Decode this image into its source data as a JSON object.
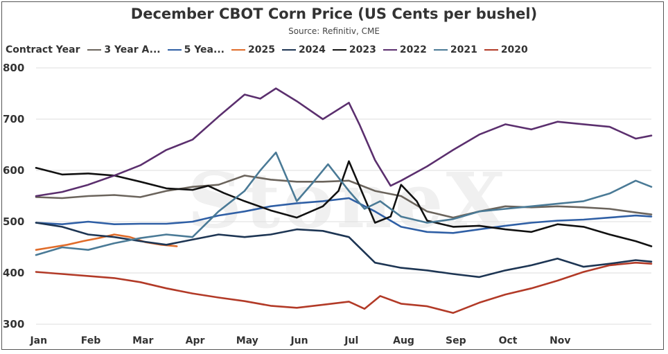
{
  "chart_data": {
    "type": "line",
    "title": "December CBOT Corn Price (US Cents per bushel)",
    "subtitle": "Source: Refinitiv, CME",
    "legend_title": "Contract Year",
    "legend_placement": "top",
    "watermark": "StoneX",
    "ylim": [
      300,
      800
    ],
    "yticks": [
      300,
      400,
      500,
      600,
      700,
      800
    ],
    "xlim": [
      0,
      11.8
    ],
    "months": [
      "Jan",
      "Feb",
      "Mar",
      "Apr",
      "May",
      "Jun",
      "Jul",
      "Aug",
      "Sep",
      "Oct",
      "Nov"
    ],
    "grid": "horizontal",
    "series": [
      {
        "name": "3 Year A...",
        "color": "#6b645c",
        "x": [
          0,
          0.5,
          1,
          1.5,
          2,
          2.5,
          3,
          3.5,
          4,
          4.5,
          5,
          5.5,
          6,
          6.5,
          7,
          7.5,
          8,
          8.5,
          9,
          9.5,
          10,
          10.5,
          11,
          11.5,
          11.8
        ],
        "y": [
          548,
          546,
          550,
          552,
          548,
          560,
          568,
          572,
          590,
          582,
          578,
          578,
          580,
          560,
          550,
          520,
          508,
          520,
          530,
          528,
          530,
          528,
          525,
          518,
          514
        ]
      },
      {
        "name": "5 Yea...",
        "color": "#2f5fa5",
        "x": [
          0,
          0.5,
          1,
          1.5,
          2,
          2.5,
          3,
          3.5,
          4,
          4.5,
          5,
          5.5,
          6,
          6.5,
          7,
          7.5,
          8,
          8.5,
          9,
          9.5,
          10,
          10.5,
          11,
          11.5,
          11.8
        ],
        "y": [
          498,
          495,
          500,
          495,
          496,
          496,
          500,
          512,
          520,
          530,
          536,
          540,
          546,
          520,
          490,
          480,
          478,
          485,
          492,
          498,
          502,
          504,
          508,
          512,
          510
        ]
      },
      {
        "name": "2025",
        "color": "#e06c2a",
        "x": [
          0,
          0.3,
          0.6,
          0.9,
          1.2,
          1.5,
          1.8,
          2.1,
          2.4,
          2.7
        ],
        "y": [
          445,
          450,
          455,
          462,
          468,
          475,
          470,
          460,
          455,
          452
        ]
      },
      {
        "name": "2024",
        "color": "#1d3553",
        "x": [
          0,
          0.5,
          1,
          1.5,
          2,
          2.5,
          3,
          3.5,
          4,
          4.5,
          5,
          5.5,
          6,
          6.5,
          7,
          7.5,
          8,
          8.5,
          9,
          9.5,
          10,
          10.5,
          11,
          11.5,
          11.8
        ],
        "y": [
          498,
          490,
          475,
          470,
          462,
          455,
          465,
          475,
          470,
          475,
          485,
          482,
          470,
          420,
          410,
          405,
          398,
          392,
          405,
          415,
          428,
          412,
          418,
          425,
          422
        ]
      },
      {
        "name": "2023",
        "color": "#111111",
        "x": [
          0,
          0.5,
          1,
          1.5,
          2,
          2.5,
          3,
          3.3,
          3.6,
          4,
          4.5,
          5,
          5.5,
          5.8,
          6,
          6.2,
          6.5,
          6.8,
          7,
          7.3,
          7.5,
          8,
          8.5,
          9,
          9.5,
          10,
          10.5,
          11,
          11.5,
          11.8
        ],
        "y": [
          605,
          592,
          594,
          590,
          578,
          565,
          562,
          570,
          556,
          540,
          522,
          508,
          530,
          560,
          618,
          570,
          498,
          510,
          572,
          540,
          502,
          490,
          492,
          485,
          480,
          495,
          490,
          475,
          462,
          452
        ]
      },
      {
        "name": "2022",
        "color": "#5b2f6e",
        "x": [
          0,
          0.5,
          1,
          1.5,
          2,
          2.5,
          3,
          3.5,
          4,
          4.3,
          4.6,
          5,
          5.5,
          6,
          6.2,
          6.5,
          6.8,
          7,
          7.5,
          8,
          8.5,
          9,
          9.5,
          10,
          10.5,
          11,
          11.5,
          11.8
        ],
        "y": [
          550,
          558,
          572,
          590,
          610,
          640,
          660,
          705,
          748,
          740,
          760,
          735,
          700,
          732,
          690,
          620,
          570,
          580,
          608,
          640,
          670,
          690,
          680,
          695,
          690,
          685,
          662,
          668
        ]
      },
      {
        "name": "2021",
        "color": "#4a7a96",
        "x": [
          0,
          0.5,
          1,
          1.5,
          2,
          2.5,
          3,
          3.5,
          4,
          4.3,
          4.6,
          5,
          5.3,
          5.6,
          6,
          6.3,
          6.6,
          7,
          7.5,
          8,
          8.5,
          9,
          9.5,
          10,
          10.5,
          11,
          11.5,
          11.8
        ],
        "y": [
          435,
          450,
          445,
          458,
          468,
          475,
          470,
          520,
          560,
          600,
          635,
          540,
          575,
          612,
          560,
          525,
          540,
          510,
          498,
          505,
          520,
          525,
          530,
          535,
          540,
          555,
          580,
          568
        ]
      },
      {
        "name": "2020",
        "color": "#b23a27",
        "x": [
          0,
          0.5,
          1,
          1.5,
          2,
          2.5,
          3,
          3.5,
          4,
          4.5,
          5,
          5.5,
          6,
          6.3,
          6.6,
          7,
          7.5,
          8,
          8.5,
          9,
          9.5,
          10,
          10.5,
          11,
          11.5,
          11.8
        ],
        "y": [
          402,
          398,
          394,
          390,
          382,
          370,
          360,
          352,
          345,
          336,
          332,
          338,
          344,
          330,
          355,
          340,
          335,
          322,
          342,
          358,
          370,
          385,
          402,
          415,
          420,
          418
        ]
      }
    ]
  }
}
